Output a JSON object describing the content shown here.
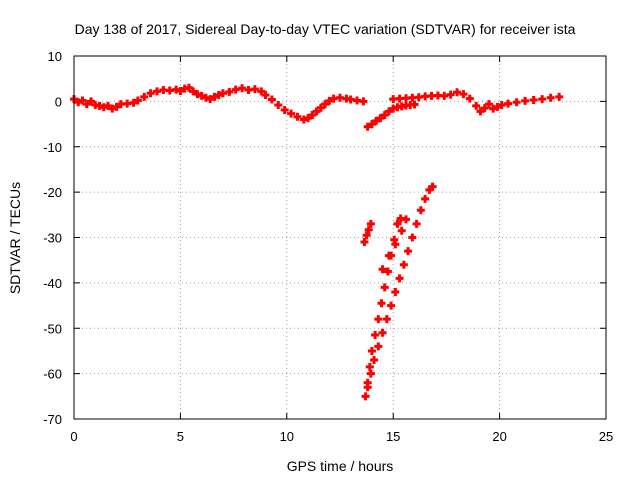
{
  "chart_data": {
    "type": "scatter",
    "title": "Day 138 of 2017, Sidereal Day-to-day VTEC variation (SDTVAR) for receiver ista",
    "xlabel": "GPS time / hours",
    "ylabel": "SDTVAR / TECUs",
    "xlim": [
      0,
      25
    ],
    "ylim": [
      -70,
      10
    ],
    "x_ticks": [
      0,
      5,
      10,
      15,
      20,
      25
    ],
    "y_ticks": [
      10,
      0,
      -10,
      -20,
      -30,
      -40,
      -50,
      -60,
      -70
    ],
    "x_tick_labels": [
      "0",
      "5",
      "10",
      "15",
      "20",
      "25"
    ],
    "y_tick_labels": [
      "10",
      "0",
      "-10",
      "-20",
      "-30",
      "-40",
      "-50",
      "-60",
      "-70"
    ],
    "grid": true,
    "marker": "plus",
    "series_color": "#ff0000",
    "series": [
      {
        "points": [
          [
            0.0,
            0.5
          ],
          [
            0.2,
            -0.2
          ],
          [
            0.4,
            0.2
          ],
          [
            0.6,
            -0.6
          ],
          [
            0.8,
            0.0
          ],
          [
            1.0,
            -0.8
          ],
          [
            1.2,
            -1.0
          ],
          [
            1.4,
            -1.3
          ],
          [
            1.6,
            -1.0
          ],
          [
            1.8,
            -1.6
          ],
          [
            2.0,
            -1.2
          ],
          [
            2.2,
            -0.6
          ],
          [
            2.5,
            -0.5
          ],
          [
            2.8,
            -0.3
          ],
          [
            3.0,
            0.2
          ],
          [
            3.3,
            1.0
          ],
          [
            3.6,
            1.8
          ],
          [
            3.9,
            2.2
          ],
          [
            4.2,
            2.5
          ],
          [
            4.5,
            2.4
          ],
          [
            4.8,
            2.6
          ],
          [
            5.0,
            2.3
          ],
          [
            5.2,
            2.8
          ],
          [
            5.4,
            3.0
          ],
          [
            5.6,
            2.2
          ],
          [
            5.8,
            1.6
          ],
          [
            6.0,
            1.2
          ],
          [
            6.2,
            0.8
          ],
          [
            6.4,
            0.5
          ],
          [
            6.6,
            1.0
          ],
          [
            6.8,
            1.4
          ],
          [
            7.0,
            1.8
          ],
          [
            7.3,
            2.1
          ],
          [
            7.6,
            2.6
          ],
          [
            7.9,
            2.9
          ],
          [
            8.2,
            2.5
          ],
          [
            8.5,
            2.7
          ],
          [
            8.8,
            2.2
          ],
          [
            9.0,
            1.4
          ],
          [
            9.3,
            0.4
          ],
          [
            9.6,
            -0.8
          ],
          [
            9.9,
            -1.9
          ],
          [
            10.2,
            -2.7
          ],
          [
            10.5,
            -3.4
          ],
          [
            10.8,
            -4.0
          ],
          [
            11.0,
            -3.7
          ],
          [
            11.2,
            -3.0
          ],
          [
            11.4,
            -2.2
          ],
          [
            11.6,
            -1.4
          ],
          [
            11.8,
            -0.6
          ],
          [
            12.0,
            0.1
          ],
          [
            12.2,
            0.6
          ],
          [
            12.5,
            0.8
          ],
          [
            12.8,
            0.6
          ],
          [
            13.0,
            0.4
          ],
          [
            13.3,
            0.2
          ],
          [
            13.6,
            0.0
          ],
          [
            13.8,
            -5.6
          ],
          [
            14.0,
            -5.0
          ],
          [
            14.2,
            -4.3
          ],
          [
            14.4,
            -3.7
          ],
          [
            14.6,
            -3.0
          ],
          [
            14.8,
            -2.2
          ],
          [
            15.0,
            -1.6
          ],
          [
            15.2,
            -1.3
          ],
          [
            15.4,
            -1.1
          ],
          [
            15.6,
            -0.9
          ],
          [
            15.8,
            -0.8
          ],
          [
            16.0,
            -0.7
          ],
          [
            15.0,
            0.5
          ],
          [
            15.3,
            0.6
          ],
          [
            15.6,
            0.7
          ],
          [
            15.9,
            0.8
          ],
          [
            16.2,
            0.9
          ],
          [
            16.5,
            1.1
          ],
          [
            16.8,
            1.2
          ],
          [
            17.1,
            1.3
          ],
          [
            17.4,
            1.2
          ],
          [
            17.7,
            1.5
          ],
          [
            18.0,
            2.0
          ],
          [
            18.3,
            1.6
          ],
          [
            18.6,
            0.6
          ],
          [
            18.9,
            -1.0
          ],
          [
            19.1,
            -2.2
          ],
          [
            19.3,
            -1.5
          ],
          [
            19.5,
            -0.6
          ],
          [
            19.7,
            -1.6
          ],
          [
            19.9,
            -1.2
          ],
          [
            20.1,
            -0.8
          ],
          [
            20.4,
            -0.5
          ],
          [
            20.8,
            -0.2
          ],
          [
            21.2,
            0.1
          ],
          [
            21.6,
            0.3
          ],
          [
            22.0,
            0.5
          ],
          [
            22.4,
            0.8
          ],
          [
            22.8,
            1.0
          ],
          [
            13.65,
            -31.0
          ],
          [
            13.75,
            -29.5
          ],
          [
            13.85,
            -28.3
          ],
          [
            13.95,
            -27.0
          ],
          [
            13.7,
            -65.0
          ],
          [
            13.8,
            -62.0
          ],
          [
            13.9,
            -58.5
          ],
          [
            14.0,
            -55.0
          ],
          [
            14.15,
            -51.5
          ],
          [
            14.3,
            -48.0
          ],
          [
            14.45,
            -44.5
          ],
          [
            14.6,
            -41.0
          ],
          [
            14.75,
            -37.5
          ],
          [
            14.9,
            -34.0
          ],
          [
            15.05,
            -30.5
          ],
          [
            15.2,
            -27.0
          ],
          [
            15.35,
            -25.8
          ],
          [
            13.8,
            -63.0
          ],
          [
            13.95,
            -60.0
          ],
          [
            14.1,
            -57.0
          ],
          [
            14.3,
            -54.0
          ],
          [
            14.5,
            -51.0
          ],
          [
            14.7,
            -48.0
          ],
          [
            14.9,
            -45.0
          ],
          [
            15.1,
            -42.0
          ],
          [
            15.3,
            -39.0
          ],
          [
            15.5,
            -36.0
          ],
          [
            15.7,
            -33.0
          ],
          [
            15.9,
            -30.0
          ],
          [
            16.1,
            -27.0
          ],
          [
            16.3,
            -24.0
          ],
          [
            16.5,
            -21.5
          ],
          [
            16.7,
            -19.5
          ],
          [
            16.85,
            -18.8
          ],
          [
            14.5,
            -37.0
          ],
          [
            14.8,
            -34.0
          ],
          [
            15.1,
            -31.5
          ],
          [
            15.4,
            -28.5
          ],
          [
            15.6,
            -26.0
          ]
        ]
      }
    ]
  }
}
